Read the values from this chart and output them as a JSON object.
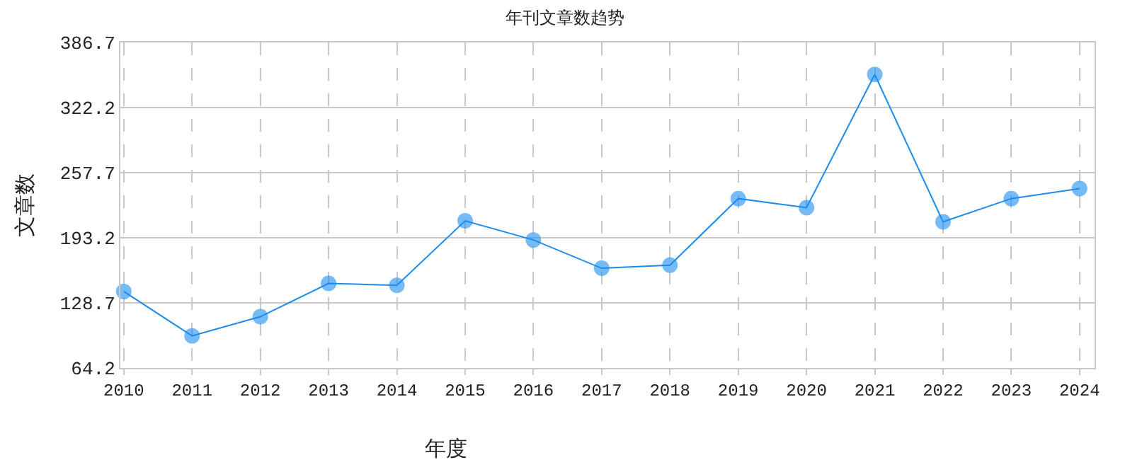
{
  "chart_data": {
    "type": "line",
    "title": "年刊文章数趋势",
    "xlabel": "年度",
    "ylabel": "文章数",
    "categories": [
      "2010",
      "2011",
      "2012",
      "2013",
      "2014",
      "2015",
      "2016",
      "2017",
      "2018",
      "2019",
      "2020",
      "2021",
      "2022",
      "2023",
      "2024"
    ],
    "series": [
      {
        "color": "#1a8cf0",
        "values": [
          140,
          96,
          115,
          148,
          146,
          210,
          191,
          163,
          166,
          232,
          223,
          355,
          209,
          232,
          242
        ]
      }
    ],
    "ylim": [
      64.2,
      386.7
    ],
    "yticks": [
      64.2,
      128.7,
      193.2,
      257.7,
      322.2,
      386.7
    ],
    "grid": true,
    "marker": "circle",
    "line_style": "solid",
    "legend": false
  }
}
